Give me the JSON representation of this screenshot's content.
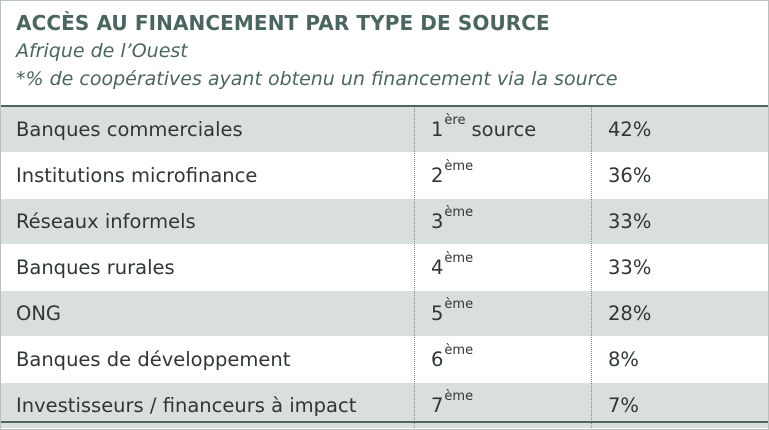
{
  "header": {
    "title": "ACCÈS AU FINANCEMENT PAR TYPE DE SOURCE",
    "subtitle_region": "Afrique de l’Ouest",
    "subtitle_note": "*% de coopératives ayant obtenu un financement via la source"
  },
  "rows": [
    {
      "name": "Banques commerciales",
      "rank_num": "1",
      "rank_sup": "ère",
      "rank_suffix": "source",
      "pct": "42%"
    },
    {
      "name": "Institutions microfinance",
      "rank_num": "2",
      "rank_sup": "ème",
      "rank_suffix": "",
      "pct": "36%"
    },
    {
      "name": "Réseaux informels",
      "rank_num": "3",
      "rank_sup": "ème",
      "rank_suffix": "",
      "pct": "33%"
    },
    {
      "name": "Banques rurales",
      "rank_num": "4",
      "rank_sup": "ème",
      "rank_suffix": "",
      "pct": "33%"
    },
    {
      "name": "ONG",
      "rank_num": "5",
      "rank_sup": "ème",
      "rank_suffix": "",
      "pct": "28%"
    },
    {
      "name": "Banques de développement",
      "rank_num": "6",
      "rank_sup": "ème",
      "rank_suffix": "",
      "pct": "8%"
    },
    {
      "name": "Investisseurs / financeurs à impact",
      "rank_num": "7",
      "rank_sup": "ème",
      "rank_suffix": "",
      "pct": "7%"
    }
  ],
  "colors": {
    "accent": "#4b6560",
    "row_shade": "#d9dfdd",
    "text": "#2f3633"
  }
}
